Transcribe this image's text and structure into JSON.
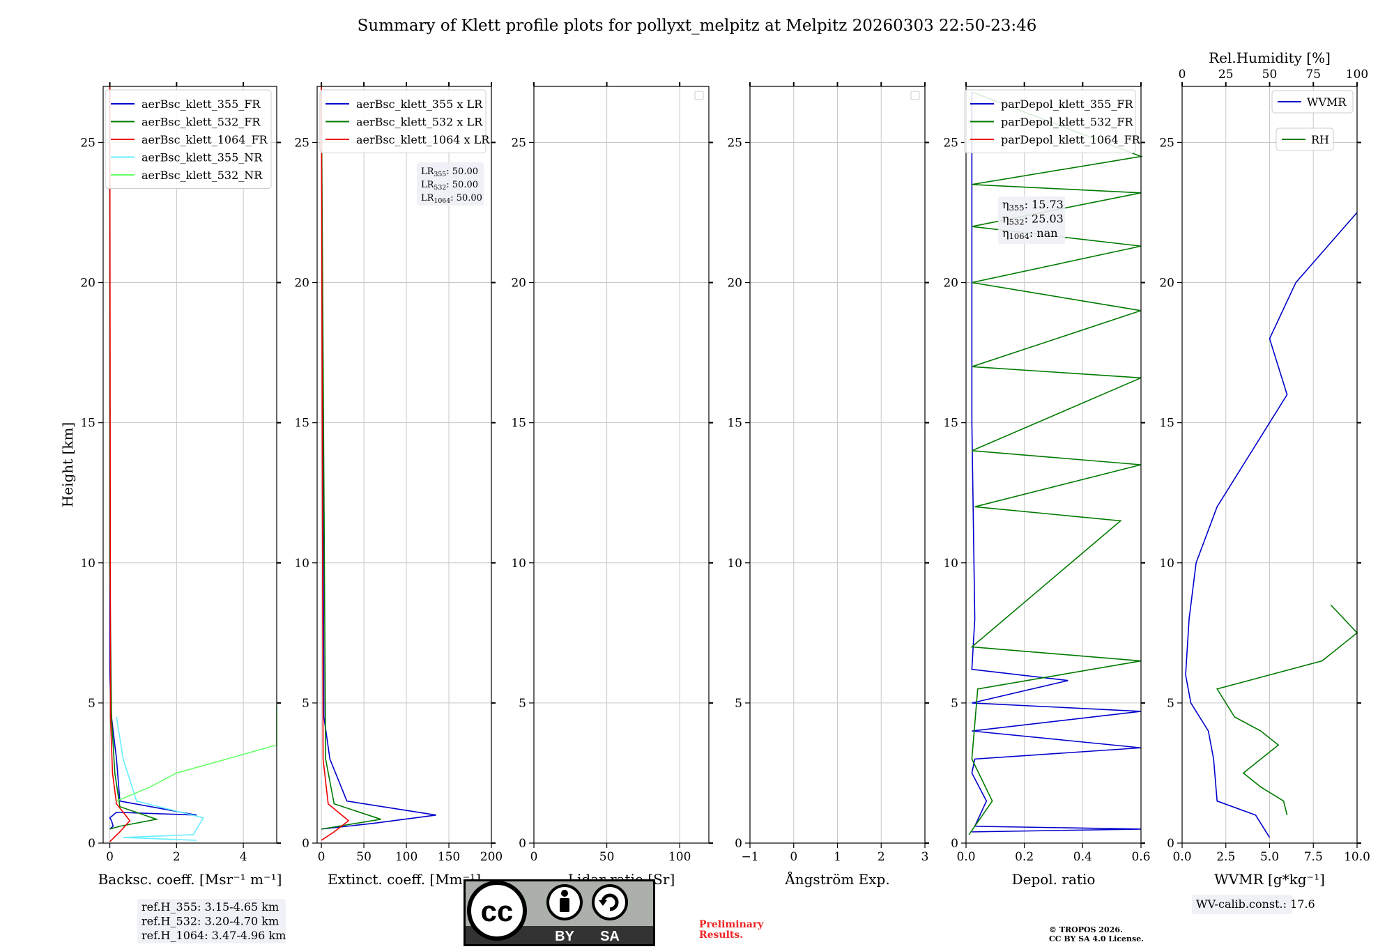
{
  "title": "Summary of Klett profile plots for pollyxt_melpitz at Melpitz 20260303 22:50-23:46",
  "footer": {
    "preliminary": "Preliminary\nResults.",
    "copyright": "© TROPOS 2026.\nCC BY SA 4.0 License.",
    "license_badge": {
      "cc": "cc",
      "by": "BY",
      "sa": "SA"
    }
  },
  "colors": {
    "blue": "#0000cc",
    "green": "#007a00",
    "red": "#ee0000",
    "cyan": "#66eeff",
    "lightgreen": "#66ff66"
  },
  "chart_data": [
    {
      "type": "line",
      "panel": "backscatter",
      "xlabel": "Backsc. coeff. [Msr⁻¹ m⁻¹]",
      "ylabel": "Height [km]",
      "xlim": [
        -0.2,
        5
      ],
      "ylim": [
        0,
        27
      ],
      "xticks": [
        0,
        2,
        4
      ],
      "yticks": [
        0,
        5,
        10,
        15,
        20,
        25
      ],
      "grid": true,
      "legend_position": "top-right",
      "series": [
        {
          "name": "aerBsc_klett_355_FR",
          "color": "blue",
          "x": [
            0,
            0.05,
            0.1,
            0.05,
            0,
            0.2,
            2.6,
            0.3,
            0.2,
            0.05,
            0,
            0,
            0
          ],
          "y": [
            0.5,
            0.55,
            0.6,
            0.8,
            0.9,
            1.1,
            1.0,
            1.5,
            3.0,
            4.5,
            6.0,
            15.0,
            27.0
          ]
        },
        {
          "name": "aerBsc_klett_532_FR",
          "color": "green",
          "x": [
            0,
            0.3,
            1.4,
            0.3,
            0.15,
            0.05,
            0,
            0
          ],
          "y": [
            0.5,
            0.6,
            0.85,
            1.3,
            2.5,
            4.5,
            10.0,
            27.0
          ]
        },
        {
          "name": "aerBsc_klett_1064_FR",
          "color": "red",
          "x": [
            0,
            0.3,
            0.6,
            0.2,
            0.08,
            0.02,
            0
          ],
          "y": [
            0.05,
            0.4,
            0.8,
            1.4,
            2.5,
            4.5,
            27.0
          ]
        },
        {
          "name": "aerBsc_klett_355_NR",
          "color": "cyan",
          "x": [
            2.6,
            0.4,
            2.5,
            2.8,
            0.8,
            0.4,
            0.2
          ],
          "y": [
            0.1,
            0.2,
            0.3,
            0.9,
            1.5,
            3.0,
            4.5
          ]
        },
        {
          "name": "aerBsc_klett_532_NR",
          "color": "lightgreen",
          "x": [
            0.2,
            1.2,
            2.0,
            3.5,
            5.0,
            5.0,
            5.0
          ],
          "y": [
            1.5,
            2.0,
            2.5,
            3.0,
            3.5,
            4.2,
            4.9
          ]
        }
      ],
      "annotations": [
        "ref.H_355: 3.15-4.65 km",
        "ref.H_532: 3.20-4.70 km",
        "ref.H_1064: 3.47-4.96 km"
      ]
    },
    {
      "type": "line",
      "panel": "extinction",
      "xlabel": "Extinct. coeff. [Mm⁻¹]",
      "xlim": [
        -5,
        200
      ],
      "ylim": [
        0,
        27
      ],
      "xticks": [
        0,
        50,
        100,
        150,
        200
      ],
      "yticks": [
        0,
        5,
        10,
        15,
        20,
        25
      ],
      "grid": true,
      "legend_position": "top-right",
      "series": [
        {
          "name": "aerBsc_klett_355 x LR",
          "color": "blue",
          "x": [
            0,
            60,
            135,
            30,
            10,
            3,
            0
          ],
          "y": [
            0.5,
            0.7,
            1.0,
            1.5,
            3.0,
            4.5,
            27.0
          ]
        },
        {
          "name": "aerBsc_klett_532 x LR",
          "color": "green",
          "x": [
            0,
            20,
            70,
            15,
            5,
            0
          ],
          "y": [
            0.5,
            0.6,
            0.85,
            1.4,
            3.0,
            27.0
          ]
        },
        {
          "name": "aerBsc_klett_1064 x LR",
          "color": "red",
          "x": [
            0,
            15,
            32,
            8,
            2,
            0
          ],
          "y": [
            0.1,
            0.4,
            0.8,
            1.4,
            3.0,
            27.0
          ]
        }
      ],
      "annotations": [
        "LR355: 50.00",
        "LR532: 50.00",
        "LR1064: 50.00"
      ]
    },
    {
      "type": "line",
      "panel": "lidar ratio",
      "xlabel": "Lidar ratio [Sr]",
      "xlim": [
        0,
        120
      ],
      "ylim": [
        0,
        27
      ],
      "xticks": [
        0,
        50,
        100
      ],
      "yticks": [
        0,
        5,
        10,
        15,
        20,
        25
      ],
      "grid": true,
      "legend_position": "top-right",
      "series": []
    },
    {
      "type": "line",
      "panel": "angstrom",
      "xlabel": "Ångström Exp.",
      "xlim": [
        -1,
        3
      ],
      "ylim": [
        0,
        27
      ],
      "xticks": [
        -1,
        0,
        1,
        2,
        3
      ],
      "yticks": [
        0,
        5,
        10,
        15,
        20,
        25
      ],
      "grid": true,
      "legend_position": "top-right",
      "series": []
    },
    {
      "type": "line",
      "panel": "depolarization",
      "xlabel": "Depol. ratio",
      "xlim": [
        0,
        0.6
      ],
      "ylim": [
        0,
        27
      ],
      "xticks": [
        0,
        0.2,
        0.4,
        0.6
      ],
      "xticklabels": [
        "0.0",
        "0.2",
        "0.4",
        "0.6"
      ],
      "yticks": [
        0,
        5,
        10,
        15,
        20,
        25
      ],
      "grid": true,
      "legend_position": "top-right",
      "series": [
        {
          "name": "parDepol_klett_355_FR",
          "color": "blue",
          "x": [
            0.02,
            0.6,
            0.03,
            0.07,
            0.02,
            0.03,
            0.6,
            0.02,
            0.6,
            0.02,
            0.35,
            0.02,
            0.03,
            0.02,
            0.02
          ],
          "y": [
            0.4,
            0.5,
            0.6,
            1.5,
            2.5,
            3.0,
            3.4,
            4.0,
            4.7,
            5.0,
            5.8,
            6.2,
            8.0,
            15.0,
            26.8
          ]
        },
        {
          "name": "parDepol_klett_532_FR",
          "color": "green",
          "x": [
            0.01,
            0.09,
            0.02,
            0.04,
            0.6,
            0.02,
            0.53,
            0.03,
            0.6,
            0.02,
            0.6,
            0.02,
            0.6,
            0.02,
            0.6,
            0.02,
            0.6,
            0.02,
            0.6,
            0.02
          ],
          "y": [
            0.3,
            1.5,
            3.0,
            5.5,
            6.5,
            7.0,
            11.5,
            12.0,
            13.5,
            14.0,
            16.6,
            17.0,
            19.0,
            20.0,
            21.3,
            22.0,
            23.2,
            23.5,
            24.5,
            26.8
          ]
        },
        {
          "name": "parDepol_klett_1064_FR",
          "color": "red",
          "x": [],
          "y": []
        }
      ],
      "annotations": [
        "η355: 15.73",
        "η532: 25.03",
        "η1064: nan"
      ]
    },
    {
      "type": "line",
      "panel": "water vapor",
      "xlabel": "WVMR [g*kg⁻¹]",
      "x2label": "Rel.Humidity [%]",
      "xlim": [
        0,
        10
      ],
      "x2lim": [
        0,
        100
      ],
      "ylim": [
        0,
        27
      ],
      "xticks": [
        0,
        2.5,
        5,
        7.5,
        10
      ],
      "xticklabels": [
        "0.0",
        "2.5",
        "5.0",
        "7.5",
        "10.0"
      ],
      "x2ticks": [
        0,
        25,
        50,
        75,
        100
      ],
      "yticks": [
        0,
        5,
        10,
        15,
        20,
        25
      ],
      "grid": true,
      "legend_position": "top-right",
      "series": [
        {
          "name": "WVMR",
          "color": "blue",
          "x": [
            5.0,
            4.2,
            2.0,
            1.8,
            1.5,
            0.5,
            0.2,
            0.4,
            0.8,
            2.0,
            4.0,
            6.0,
            5.0,
            6.5,
            10.0
          ],
          "y": [
            0.2,
            1.0,
            1.5,
            3.0,
            4.0,
            5.0,
            6.0,
            8.0,
            10.0,
            12.0,
            14.0,
            16.0,
            18.0,
            20.0,
            22.5
          ]
        },
        {
          "name": "RH",
          "color": "green",
          "x": [
            6.0,
            5.8,
            4.5,
            3.5,
            5.5,
            4.5,
            3.0,
            2.0,
            8.0,
            10.0,
            8.5
          ],
          "y": [
            1.0,
            1.5,
            2.0,
            2.5,
            3.5,
            4.0,
            4.5,
            5.5,
            6.5,
            7.5,
            8.5
          ]
        }
      ],
      "annotations": [
        "WV-calib.const.: 17.6"
      ]
    }
  ]
}
